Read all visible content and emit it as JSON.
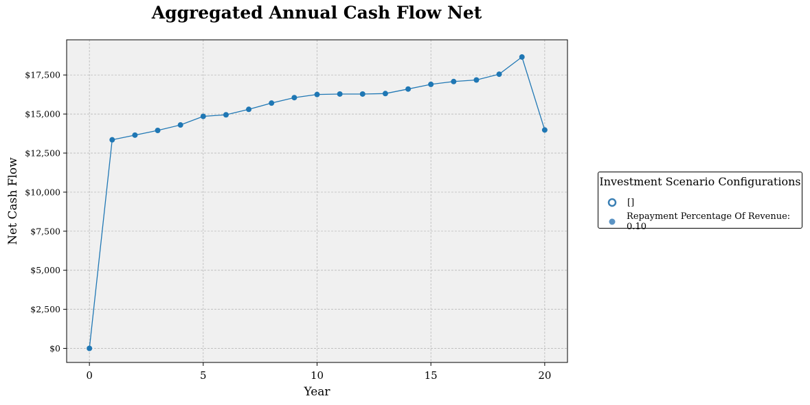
{
  "chart_data": {
    "type": "line",
    "title": "Aggregated Annual Cash Flow Net",
    "xlabel": "Year",
    "ylabel": "Net Cash Flow",
    "x": [
      0,
      1,
      2,
      3,
      4,
      5,
      6,
      7,
      8,
      9,
      10,
      11,
      12,
      13,
      14,
      15,
      16,
      17,
      18,
      19,
      20
    ],
    "series": [
      {
        "values": [
          0,
          13350,
          13650,
          13950,
          14300,
          14850,
          14950,
          15300,
          15700,
          16050,
          16250,
          16280,
          16280,
          16310,
          16600,
          16900,
          17080,
          17180,
          17550,
          18650,
          13980
        ],
        "color": "#1f77b4"
      }
    ],
    "xlim": [
      -1,
      21
    ],
    "ylim": [
      -900,
      19750
    ],
    "xticks": [
      0,
      5,
      10,
      15,
      20
    ],
    "xtick_labels": [
      "0",
      "5",
      "10",
      "15",
      "20"
    ],
    "yticks": [
      0,
      2500,
      5000,
      7500,
      10000,
      12500,
      15000,
      17500
    ],
    "ytick_labels": [
      "$0",
      "$2,500",
      "$5,000",
      "$7,500",
      "$10,000",
      "$12,500",
      "$15,000",
      "$17,500"
    ],
    "grid": true,
    "plot_background": "#f0f0f0",
    "legend": {
      "title": "Investment Scenario Configurations",
      "placement": "right-outside",
      "entries": [
        {
          "label": "[]",
          "marker": "hollow-circle",
          "color": "#3a7fb4"
        },
        {
          "label": "Repayment Percentage Of Revenue: 0.10",
          "marker": "filled-circle",
          "color": "#5b93c4"
        }
      ]
    }
  }
}
